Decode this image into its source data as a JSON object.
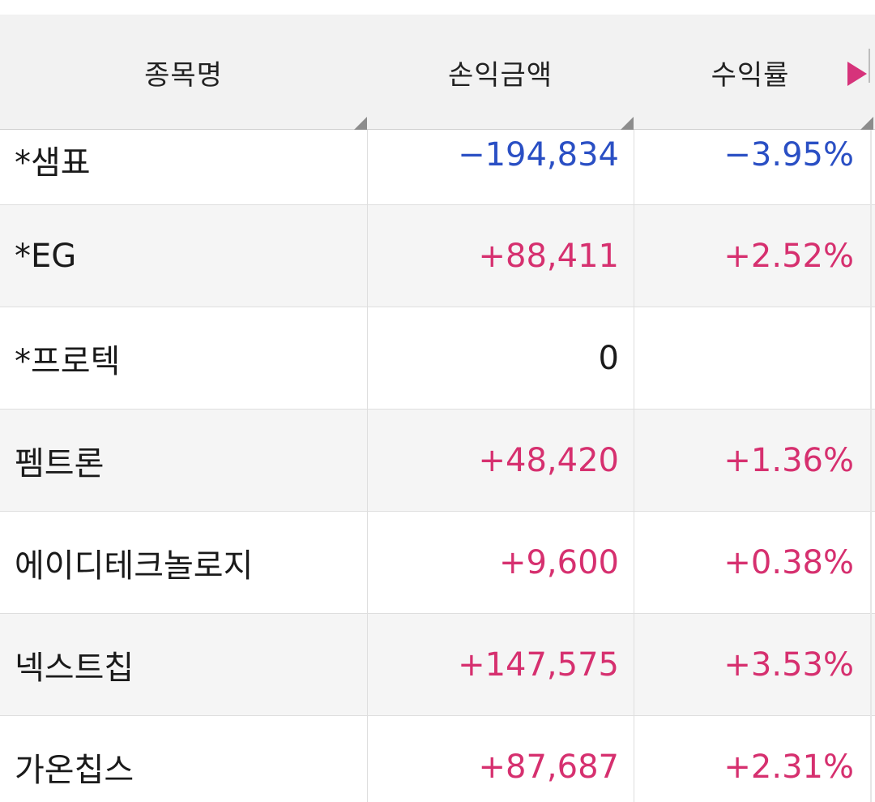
{
  "header": {
    "col_name": "종목명",
    "col_pl": "손익금액",
    "col_rate": "수익률"
  },
  "colors": {
    "negative": "#2a4fc4",
    "positive": "#d6306f",
    "neutral": "#1a1a1a",
    "accent": "#d6337b"
  },
  "icons": {
    "next_columns": "play-triangle-icon",
    "column_corner": "corner-triangle-icon"
  },
  "rows": [
    {
      "name": "*샘표",
      "pl": "−194,834",
      "rate": "−3.95%",
      "tone": "negative"
    },
    {
      "name": "*EG",
      "pl": "+88,411",
      "rate": "+2.52%",
      "tone": "positive"
    },
    {
      "name": "*프로텍",
      "pl": "0",
      "rate": "",
      "tone": "neutral"
    },
    {
      "name": "펨트론",
      "pl": "+48,420",
      "rate": "+1.36%",
      "tone": "positive"
    },
    {
      "name": "에이디테크놀로지",
      "pl": "+9,600",
      "rate": "+0.38%",
      "tone": "positive"
    },
    {
      "name": "넥스트칩",
      "pl": "+147,575",
      "rate": "+3.53%",
      "tone": "positive"
    },
    {
      "name": "가온칩스",
      "pl": "+87,687",
      "rate": "+2.31%",
      "tone": "positive"
    }
  ]
}
